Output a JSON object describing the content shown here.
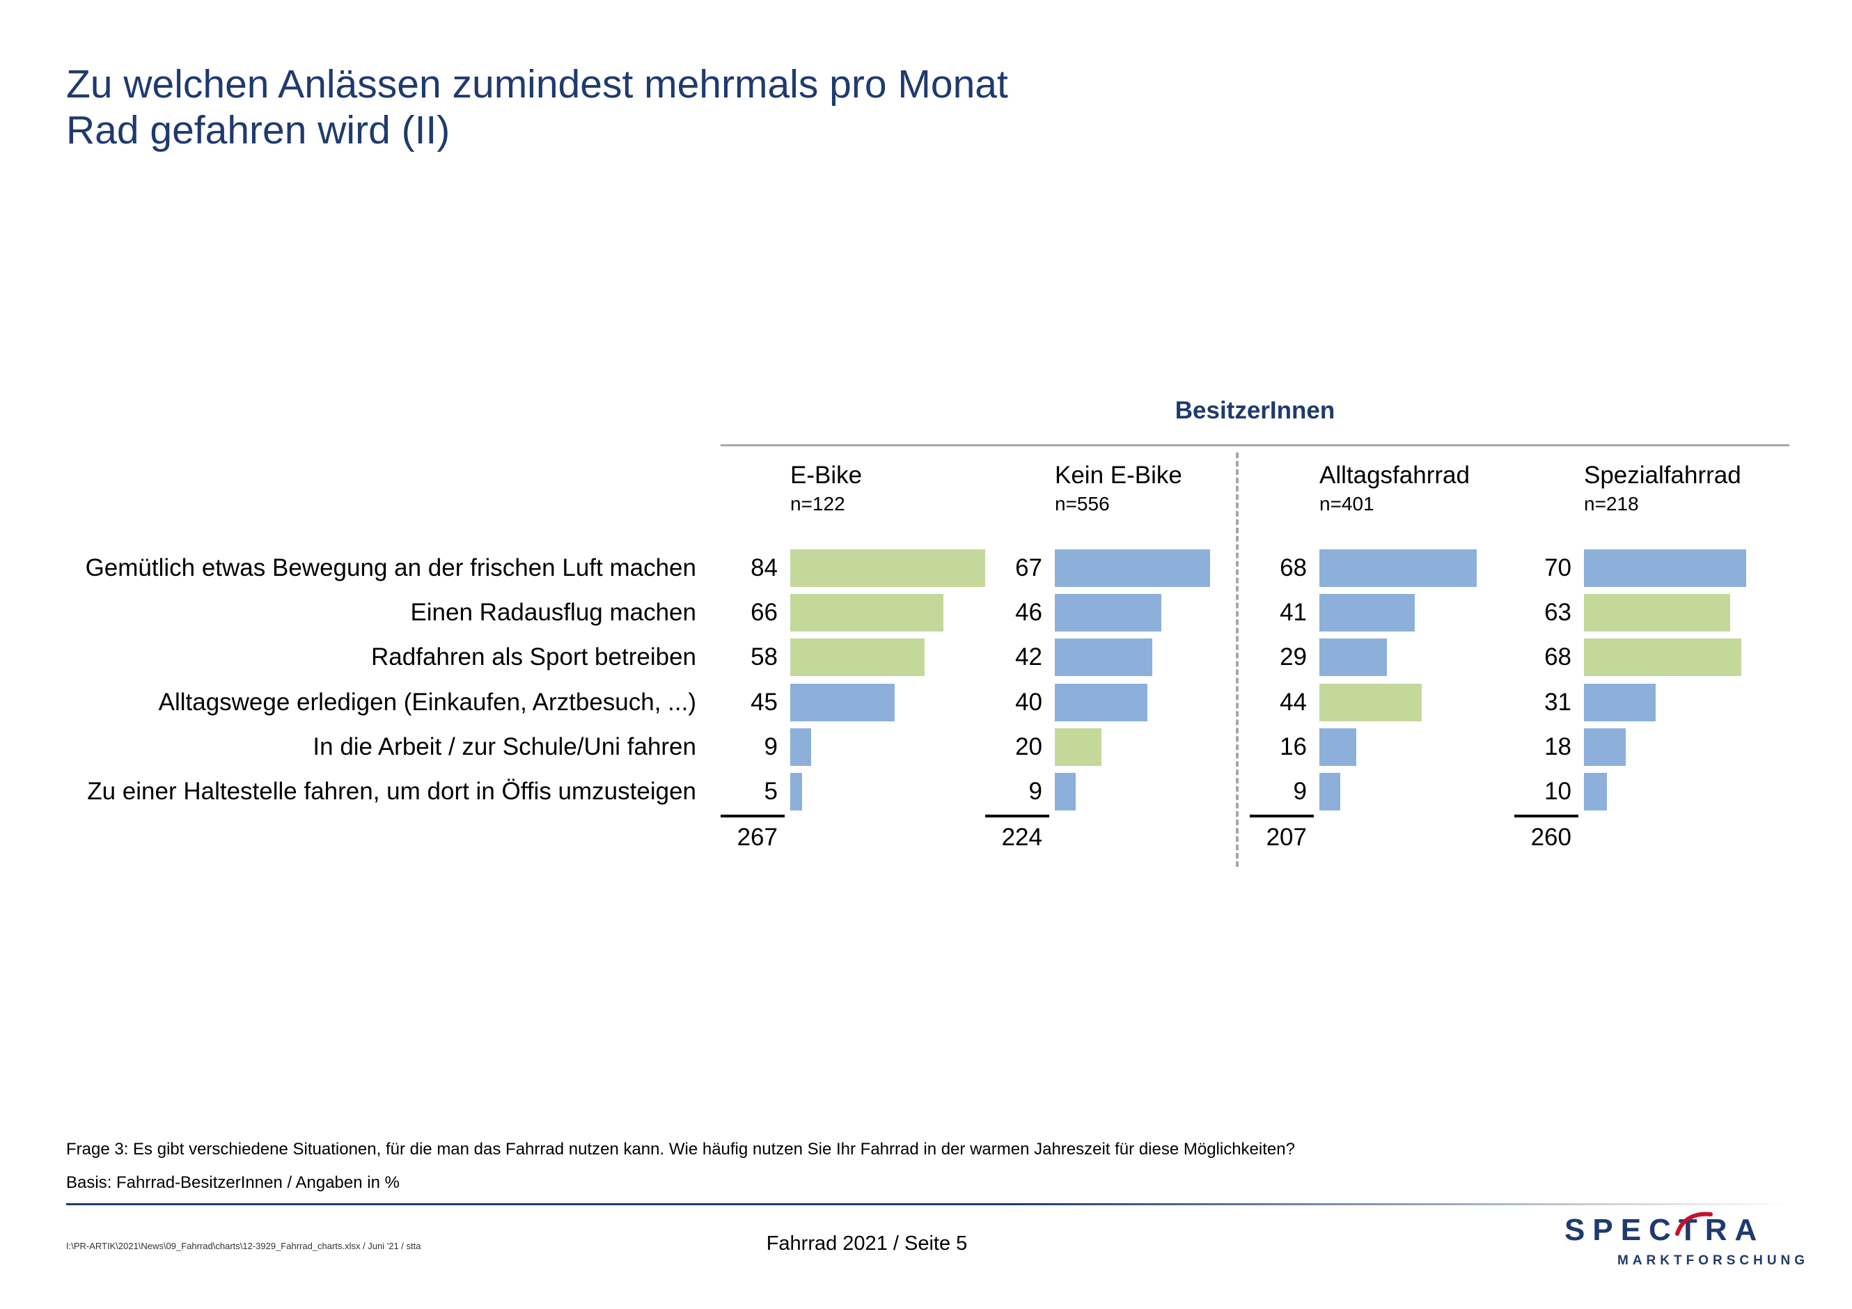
{
  "title": {
    "line1": "Zu welchen Anlässen zumindest mehrmals pro Monat",
    "line2": "Rad gefahren wird (II)"
  },
  "colors": {
    "title": "#1f3a6e",
    "blue_bar": "#8db0da",
    "green_bar": "#c5d89c"
  },
  "chart_data": {
    "type": "bar",
    "orientation": "horizontal",
    "group_label": "BesitzerInnen",
    "categories": [
      "Gemütlich etwas Bewegung an der frischen Luft machen",
      "Einen Radausflug machen",
      "Radfahren als Sport betreiben",
      "Alltagswege erledigen (Einkaufen, Arztbesuch, ...)",
      "In die Arbeit / zur Schule/Uni fahren",
      "Zu einer Haltestelle fahren, um dort in Öffis umzusteigen"
    ],
    "series": [
      {
        "name": "E-Bike",
        "n_label": "n=122",
        "values": [
          84,
          66,
          58,
          45,
          9,
          5
        ],
        "highlight": [
          true,
          true,
          true,
          false,
          false,
          false
        ],
        "total": "267"
      },
      {
        "name": "Kein E-Bike",
        "n_label": "n=556",
        "values": [
          67,
          46,
          42,
          40,
          20,
          9
        ],
        "highlight": [
          false,
          false,
          false,
          false,
          true,
          false
        ],
        "total": "224"
      },
      {
        "name": "Alltagsfahrrad",
        "n_label": "n=401",
        "values": [
          68,
          41,
          29,
          44,
          16,
          9
        ],
        "highlight": [
          false,
          false,
          false,
          true,
          false,
          false
        ],
        "total": "207"
      },
      {
        "name": "Spezialfahrrad",
        "n_label": "n=218",
        "values": [
          70,
          63,
          68,
          31,
          18,
          10
        ],
        "highlight": [
          false,
          true,
          true,
          false,
          false,
          false
        ],
        "total": "260"
      }
    ],
    "xlim": [
      0,
      100
    ]
  },
  "footnotes": {
    "question": "Frage 3: Es gibt verschiedene Situationen, für die man das Fahrrad nutzen kann. Wie häufig nutzen Sie Ihr Fahrrad in der warmen Jahreszeit für diese Möglichkeiten?",
    "basis": "Basis: Fahrrad-BesitzerInnen / Angaben in %"
  },
  "footer": {
    "filepath": "I:\\PR-ARTIK\\2021\\News\\09_Fahrrad\\charts\\12-3929_Fahrrad_charts.xlsx / Juni '21 / stta",
    "page": "Fahrrad 2021  /  Seite  5"
  },
  "logo": {
    "word": "SPECTRA",
    "sub": "MARKTFORSCHUNG",
    "icon": "spectra-swoosh-icon"
  }
}
